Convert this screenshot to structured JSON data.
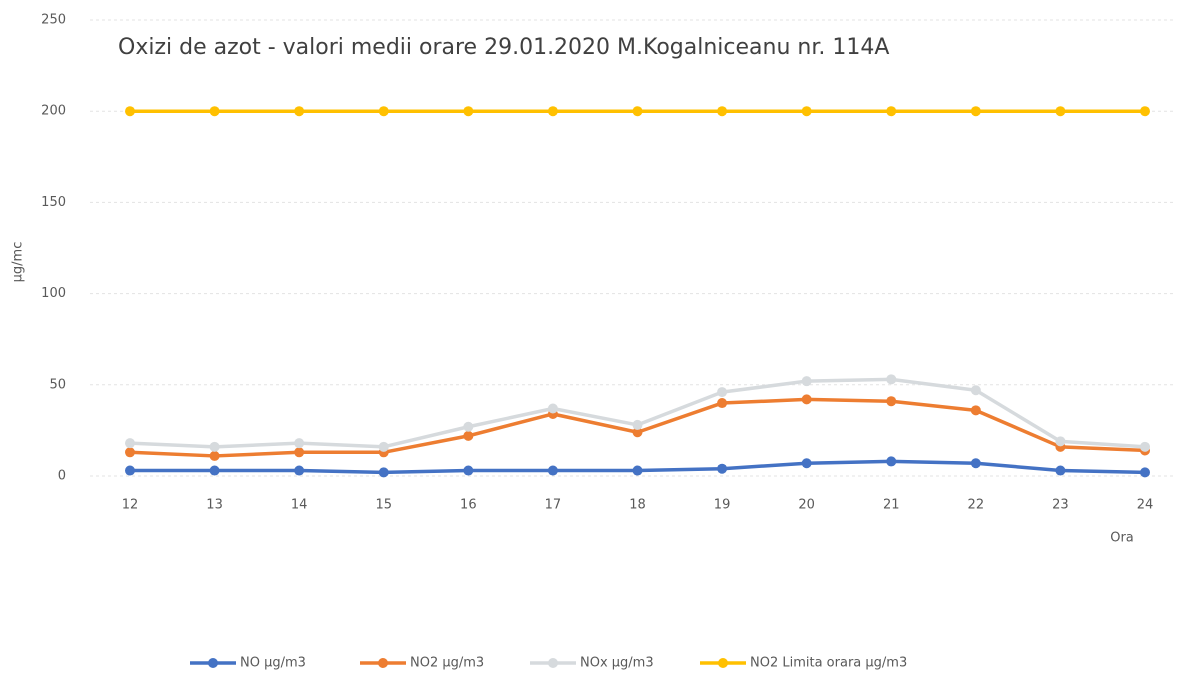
{
  "chart_data": {
    "type": "line",
    "title": "Oxizi de azot - valori medii orare 29.01.2020 M.Kogalniceanu nr. 114A",
    "y_label": "µg/mc",
    "x_label": "Ora",
    "categories": [
      "12",
      "13",
      "14",
      "15",
      "16",
      "17",
      "18",
      "19",
      "20",
      "21",
      "22",
      "23",
      "24"
    ],
    "series": [
      {
        "name": "NO µg/m3",
        "color": "#4472c4",
        "values": [
          3,
          3,
          3,
          2,
          3,
          3,
          3,
          4,
          7,
          8,
          7,
          3,
          2
        ]
      },
      {
        "name": "NO2 µg/m3",
        "color": "#ed7d31",
        "values": [
          13,
          11,
          13,
          13,
          22,
          34,
          24,
          40,
          42,
          41,
          36,
          16,
          14
        ]
      },
      {
        "name": "NOx µg/m3",
        "color": "#d6dadd",
        "values": [
          18,
          16,
          18,
          16,
          27,
          37,
          28,
          46,
          52,
          53,
          47,
          19,
          16
        ]
      },
      {
        "name": "NO2 Limita orara µg/m3",
        "color": "#ffc000",
        "values": [
          200,
          200,
          200,
          200,
          200,
          200,
          200,
          200,
          200,
          200,
          200,
          200,
          200
        ]
      }
    ],
    "ylim": [
      0,
      250
    ],
    "yticks": [
      0,
      50,
      100,
      150,
      200,
      250
    ],
    "grid": true,
    "legend": "bottom"
  }
}
